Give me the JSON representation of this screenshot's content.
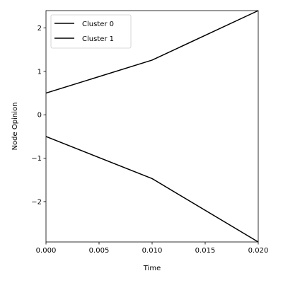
{
  "chart_data": {
    "type": "line",
    "xlabel": "Time",
    "ylabel": "Node Opinion",
    "xlim": [
      0.0,
      0.02
    ],
    "ylim": [
      -2.93,
      2.4
    ],
    "xticks": [
      {
        "value": 0.0,
        "label": "0.000"
      },
      {
        "value": 0.005,
        "label": "0.005"
      },
      {
        "value": 0.01,
        "label": "0.010"
      },
      {
        "value": 0.015,
        "label": "0.015"
      },
      {
        "value": 0.02,
        "label": "0.020"
      }
    ],
    "yticks": [
      {
        "value": -2,
        "label": "−2"
      },
      {
        "value": -1,
        "label": "−1"
      },
      {
        "value": 0,
        "label": "0"
      },
      {
        "value": 1,
        "label": "1"
      },
      {
        "value": 2,
        "label": "2"
      }
    ],
    "grid": false,
    "legend": "upper-left",
    "series": [
      {
        "name": "Cluster 0",
        "color": "#000000",
        "x": [
          0.0,
          0.01,
          0.02
        ],
        "y": [
          0.5,
          1.26,
          2.4
        ]
      },
      {
        "name": "Cluster 1",
        "color": "#000000",
        "x": [
          0.0,
          0.01,
          0.02
        ],
        "y": [
          -0.5,
          -1.47,
          -2.93
        ]
      }
    ]
  }
}
